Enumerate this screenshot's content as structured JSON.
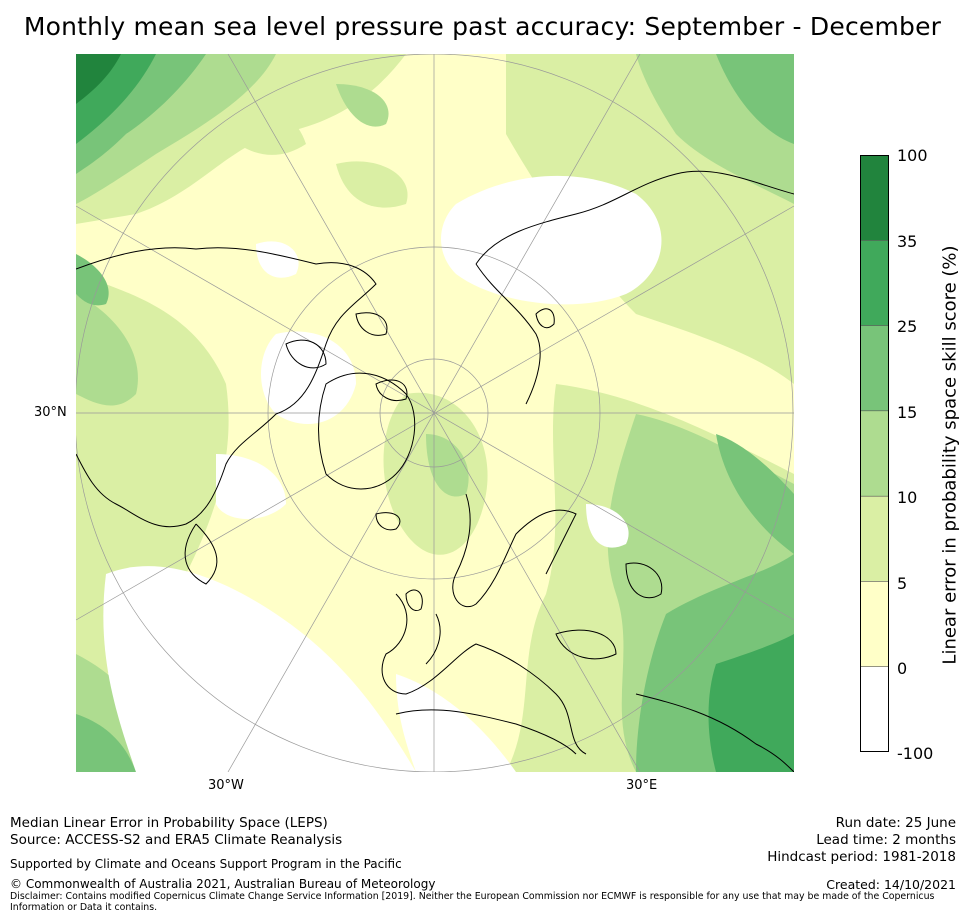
{
  "title": "Monthly mean sea level pressure past accuracy: September - December",
  "map": {
    "projection": "north polar stereographic",
    "lon_labels": [
      "30°W",
      "30°E"
    ],
    "lat_labels": [
      "30°N"
    ]
  },
  "colorbar": {
    "label": "Linear error in probability space skill score (%)",
    "ticks": [
      "100",
      "35",
      "25",
      "15",
      "10",
      "5",
      "0",
      "-100"
    ],
    "bins": [
      {
        "range": "35 to 100",
        "color": "#21843d"
      },
      {
        "range": "25 to 35",
        "color": "#40a95b"
      },
      {
        "range": "15 to 25",
        "color": "#78c479"
      },
      {
        "range": "10 to 15",
        "color": "#aedc90"
      },
      {
        "range": "5 to 10",
        "color": "#daefa4"
      },
      {
        "range": "0 to 5",
        "color": "#ffffc8"
      },
      {
        "range": "-100 to 0",
        "color": "#ffffff"
      }
    ]
  },
  "footer": {
    "line1": "Median Linear Error in Probability Space (LEPS)",
    "line2": "Source: ACCESS-S2 and ERA5 Climate Reanalysis",
    "support": "Supported by Climate and Oceans Support Program in the Pacific",
    "copyright": "© Commonwealth of Australia 2021, Australian Bureau of Meteorology",
    "disclaimer": "Disclaimer: Contains modified Copernicus Climate Change Service Information [2019]. Neither the European Commission nor ECMWF is responsible for any use that may be made of the Copernicus Information or Data it contains.",
    "run_date": "Run date: 25 June",
    "lead_time": "Lead time: 2 months",
    "hindcast": "Hindcast period: 1981-2018",
    "created": "Created: 14/10/2021"
  }
}
